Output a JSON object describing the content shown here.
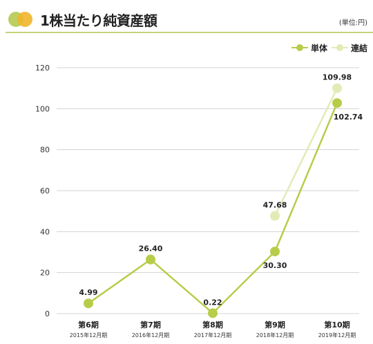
{
  "header": {
    "title": "1株当たり純資産額",
    "unit": "(単位:円)"
  },
  "colors": {
    "single": "#b8cc4a",
    "consolidated": "#e2ebb6",
    "rule": "#c5d27a",
    "grid": "#cfd3d6"
  },
  "chart_data": {
    "type": "line",
    "title": "1株当たり純資産額",
    "categories": [
      "第6期",
      "第7期",
      "第8期",
      "第9期",
      "第10期"
    ],
    "sub_categories": [
      "2015年12月期",
      "2016年12月期",
      "2017年12月期",
      "2018年12月期",
      "2019年12月期"
    ],
    "ylim": [
      0,
      120
    ],
    "yticks": [
      0,
      20,
      40,
      60,
      80,
      100,
      120
    ],
    "grid": true,
    "legend": "top-right",
    "series": [
      {
        "name": "単体",
        "values": [
          4.99,
          26.4,
          0.22,
          30.3,
          102.74
        ],
        "labels": [
          "4.99",
          "26.40",
          "0.22",
          "30.30",
          "102.74"
        ]
      },
      {
        "name": "連結",
        "values": [
          null,
          null,
          null,
          47.68,
          109.98
        ],
        "labels": [
          "",
          "",
          "",
          "47.68",
          "109.98"
        ]
      }
    ]
  }
}
